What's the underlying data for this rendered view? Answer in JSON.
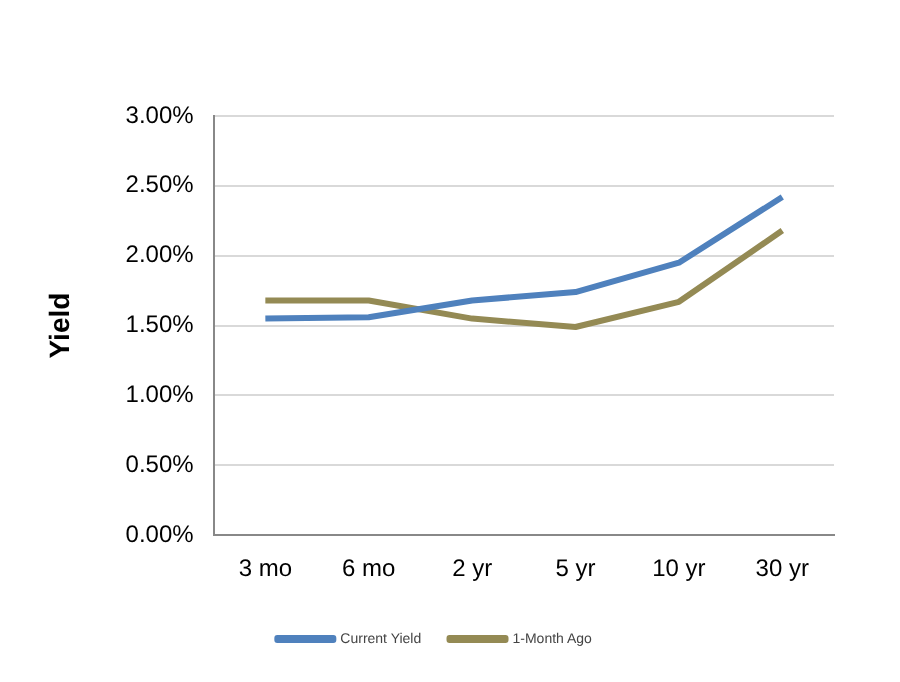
{
  "chart_data": {
    "type": "line",
    "ylabel": "Yield",
    "categories": [
      "3 mo",
      "6 mo",
      "2 yr",
      "5 yr",
      "10 yr",
      "30 yr"
    ],
    "series": [
      {
        "name": "Current Yield",
        "color": "#4f81bd",
        "values": [
          1.55,
          1.56,
          1.68,
          1.74,
          1.95,
          2.42
        ]
      },
      {
        "name": "1-Month Ago",
        "color": "#948a54",
        "values": [
          1.68,
          1.68,
          1.55,
          1.49,
          1.67,
          2.18
        ]
      }
    ],
    "ylim": [
      0,
      3
    ],
    "yticks": [
      {
        "value": 0,
        "label": "0.00%"
      },
      {
        "value": 0.5,
        "label": "0.50%"
      },
      {
        "value": 1,
        "label": "1.00%"
      },
      {
        "value": 1.5,
        "label": "1.50%"
      },
      {
        "value": 2,
        "label": "2.00%"
      },
      {
        "value": 2.5,
        "label": "2.50%"
      },
      {
        "value": 3,
        "label": "3.00%"
      }
    ],
    "grid": "y",
    "legend": "bottom",
    "marker": "none",
    "line_style": "solid"
  }
}
